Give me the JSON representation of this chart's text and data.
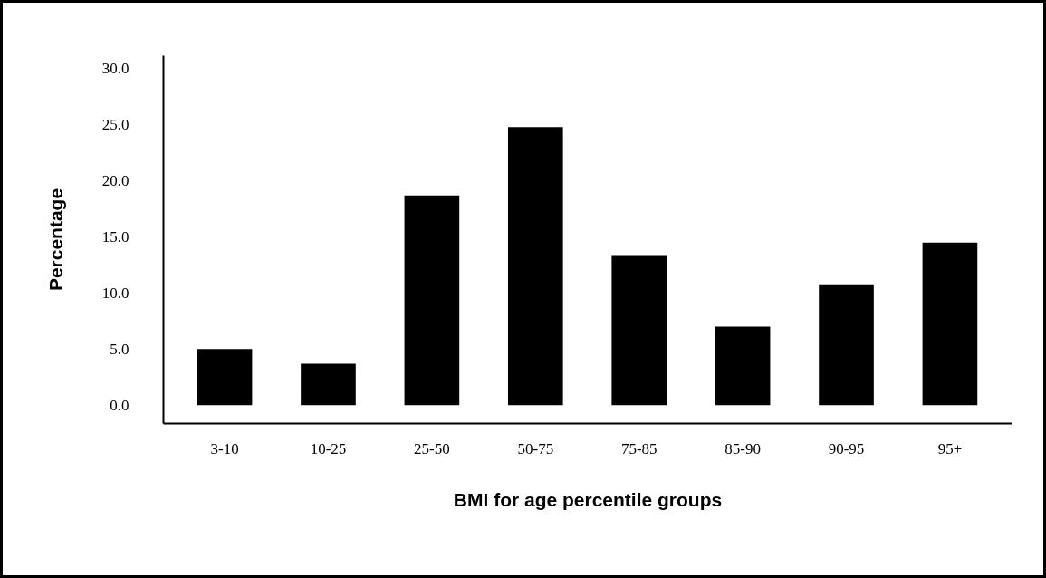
{
  "chart_data": {
    "type": "bar",
    "xlabel": "BMI for age percentile groups",
    "ylabel": "Percentage",
    "categories": [
      "3-10",
      "10-25",
      "25-50",
      "50-75",
      "75-85",
      "85-90",
      "90-95",
      "95+"
    ],
    "values": [
      5.0,
      3.7,
      18.7,
      24.8,
      13.3,
      7.0,
      10.7,
      14.5
    ],
    "color": "#000000",
    "ylim": [
      -1.6,
      31.2
    ],
    "yticks": [
      {
        "value": 0,
        "label": "0.0"
      },
      {
        "value": 5,
        "label": "5.0"
      },
      {
        "value": 10,
        "label": "10.0"
      },
      {
        "value": 15,
        "label": "15.0"
      },
      {
        "value": 20,
        "label": "20.0"
      },
      {
        "value": 25,
        "label": "25.0"
      },
      {
        "value": 30,
        "label": "30.0"
      }
    ],
    "grid": false
  }
}
